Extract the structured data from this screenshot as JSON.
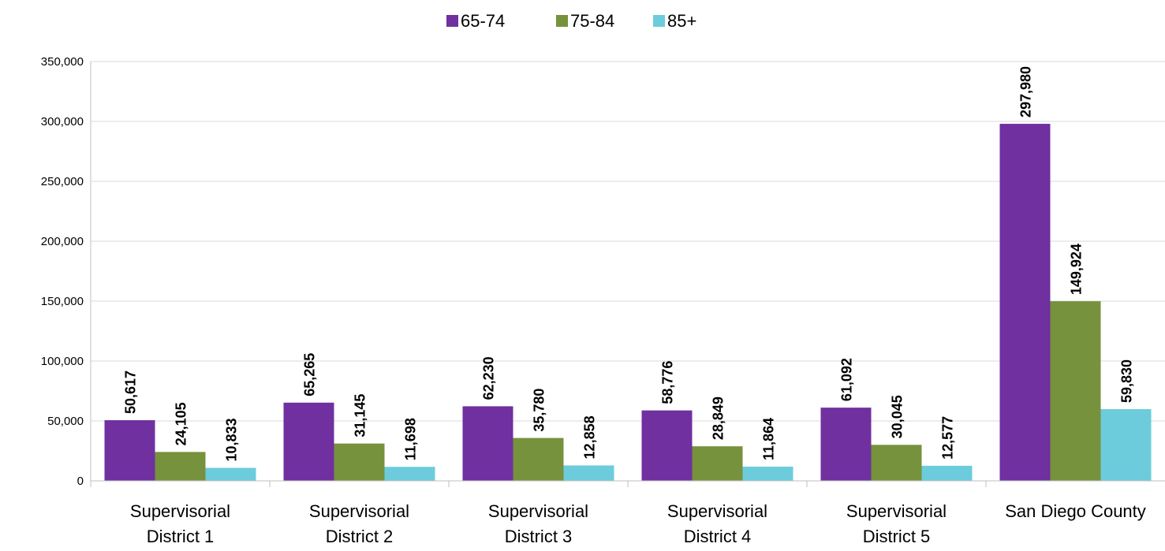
{
  "chart_data": {
    "type": "bar",
    "title": "",
    "xlabel": "",
    "ylabel": "",
    "ylim": [
      0,
      350000
    ],
    "yticks": [
      "0",
      "50,000",
      "100,000",
      "150,000",
      "200,000",
      "250,000",
      "300,000",
      "350,000"
    ],
    "grid": true,
    "legend_position": "top",
    "categories": [
      [
        "Supervisorial",
        "District 1"
      ],
      [
        "Supervisorial",
        "District 2"
      ],
      [
        "Supervisorial",
        "District 3"
      ],
      [
        "Supervisorial",
        "District 4"
      ],
      [
        "Supervisorial",
        "District 5"
      ],
      [
        "San Diego County"
      ]
    ],
    "series": [
      {
        "name": "65-74",
        "color": "#7030a0",
        "values": [
          50617,
          65265,
          62230,
          58776,
          61092,
          297980
        ],
        "labels": [
          "50,617",
          "65,265",
          "62,230",
          "58,776",
          "61,092",
          "297,980"
        ]
      },
      {
        "name": "75-84",
        "color": "#76923c",
        "values": [
          24105,
          31145,
          35780,
          28849,
          30045,
          149924
        ],
        "labels": [
          "24,105",
          "31,145",
          "35,780",
          "28,849",
          "30,045",
          "149,924"
        ]
      },
      {
        "name": "85+",
        "color": "#6cccdc",
        "values": [
          10833,
          11698,
          12858,
          11864,
          12577,
          59830
        ],
        "labels": [
          "10,833",
          "11,698",
          "12,858",
          "11,864",
          "12,577",
          "59,830"
        ]
      }
    ]
  }
}
